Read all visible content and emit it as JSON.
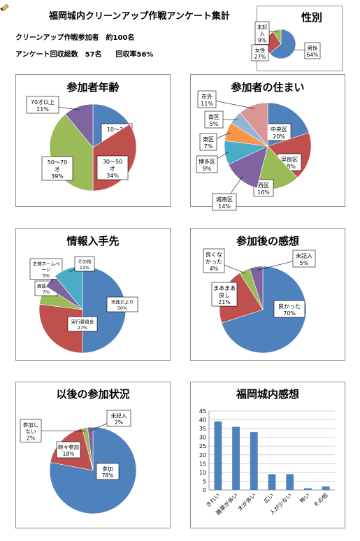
{
  "header": {
    "title": "福岡城内クリーンアップ作戦アンケート集計",
    "participants": "クリーンアップ作戦参加者　約100名",
    "collected": "アンケート回収総数　57名　　回収率56%"
  },
  "chart_data": [
    {
      "type": "pie",
      "title": "性別",
      "slices": [
        {
          "label": "男性",
          "value": 64,
          "color": "#4f81bd"
        },
        {
          "label": "女性",
          "value": 27,
          "color": "#c0504d"
        },
        {
          "label": "未記入",
          "value": 9,
          "color": "#9bbb59"
        }
      ]
    },
    {
      "type": "pie",
      "title": "参加者年齢",
      "slices": [
        {
          "label": "10～30才",
          "value": 16,
          "color": "#4f81bd"
        },
        {
          "label": "30～50才",
          "value": 34,
          "color": "#c0504d"
        },
        {
          "label": "50～70才",
          "value": 39,
          "color": "#9bbb59"
        },
        {
          "label": "70才以上",
          "value": 11,
          "color": "#8064a2"
        }
      ]
    },
    {
      "type": "pie",
      "title": "参加者の住まい",
      "slices": [
        {
          "label": "中央区",
          "value": 20,
          "color": "#4f81bd"
        },
        {
          "label": "早良区",
          "value": 18,
          "color": "#c0504d"
        },
        {
          "label": "西区",
          "value": 16,
          "color": "#9bbb59"
        },
        {
          "label": "城南区",
          "value": 14,
          "color": "#8064a2"
        },
        {
          "label": "博多区",
          "value": 9,
          "color": "#4bacc6"
        },
        {
          "label": "東区",
          "value": 7,
          "color": "#f79646"
        },
        {
          "label": "南区",
          "value": 5,
          "color": "#95b3d7"
        },
        {
          "label": "市外",
          "value": 11,
          "color": "#d99694"
        }
      ]
    },
    {
      "type": "pie",
      "title": "情報入手先",
      "slices": [
        {
          "label": "市政だより",
          "value": 50,
          "color": "#4f81bd"
        },
        {
          "label": "実行委員会",
          "value": 27,
          "color": "#c0504d"
        },
        {
          "label": "西鉄バス",
          "value": 7,
          "color": "#9bbb59"
        },
        {
          "label": "主催ホームページ",
          "value": 5,
          "color": "#8064a2"
        },
        {
          "label": "その他",
          "value": 11,
          "color": "#4bacc6"
        }
      ]
    },
    {
      "type": "pie",
      "title": "参加後の感想",
      "slices": [
        {
          "label": "良かった",
          "value": 70,
          "color": "#4f81bd"
        },
        {
          "label": "まあまあ良し",
          "value": 21,
          "color": "#c0504d"
        },
        {
          "label": "良くなかった",
          "value": 4,
          "color": "#9bbb59"
        },
        {
          "label": "未記入",
          "value": 5,
          "color": "#8064a2"
        }
      ]
    },
    {
      "type": "pie",
      "title": "以後の参加状況",
      "slices": [
        {
          "label": "参加",
          "value": 78,
          "color": "#4f81bd"
        },
        {
          "label": "時々参加",
          "value": 18,
          "color": "#c0504d"
        },
        {
          "label": "参加しない",
          "value": 2,
          "color": "#9bbb59"
        },
        {
          "label": "未記入",
          "value": 2,
          "color": "#8064a2"
        }
      ]
    },
    {
      "type": "bar",
      "title": "福岡城内感想",
      "categories": [
        "きれい",
        "雑草が多い",
        "木が多い",
        "広い",
        "人が少ない",
        "怖い",
        "その他"
      ],
      "values": [
        39,
        36,
        33,
        9,
        9,
        1,
        2
      ],
      "ylim": [
        0,
        45
      ],
      "yticks": [
        "0",
        "5",
        "10",
        "15",
        "20",
        "25",
        "30",
        "35",
        "40",
        "45"
      ],
      "color": "#4f81bd",
      "grid": true
    }
  ]
}
